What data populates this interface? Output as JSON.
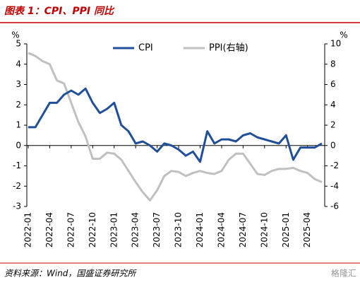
{
  "title": "图表 1：CPI、PPI 同比",
  "source": "资料来源：Wind，国盛证券研究所",
  "watermark": "格隆汇",
  "chart_data": {
    "type": "line",
    "categories": [
      "2022-01",
      null,
      null,
      "2022-04",
      null,
      null,
      "2022-07",
      null,
      null,
      "2022-10",
      null,
      null,
      "2023-01",
      null,
      null,
      "2023-04",
      null,
      null,
      "2023-07",
      null,
      null,
      "2023-10",
      null,
      null,
      "2024-01",
      null,
      null,
      "2024-04",
      null,
      null,
      "2024-07",
      null,
      null,
      "2024-10",
      null,
      null,
      "2025-01",
      null,
      null,
      "2025-04",
      null,
      null
    ],
    "series": [
      {
        "name": "CPI",
        "color": "#1f4e9a",
        "axis": "y",
        "values": [
          0.9,
          0.9,
          1.5,
          2.1,
          2.1,
          2.5,
          2.7,
          2.5,
          2.8,
          2.1,
          1.6,
          1.8,
          2.1,
          1.0,
          0.7,
          0.1,
          0.2,
          0.0,
          -0.3,
          0.1,
          0.0,
          -0.2,
          -0.5,
          -0.3,
          -0.8,
          0.7,
          0.1,
          0.3,
          0.3,
          0.2,
          0.5,
          0.6,
          0.4,
          0.3,
          0.2,
          0.1,
          0.5,
          -0.7,
          -0.1,
          -0.1,
          -0.1,
          0.1
        ]
      },
      {
        "name": "PPI(右轴)",
        "color": "#c0c0c0",
        "axis": "y2",
        "values": [
          9.1,
          8.8,
          8.3,
          8.0,
          6.4,
          6.1,
          4.2,
          2.3,
          0.9,
          -1.3,
          -1.3,
          -0.7,
          -0.8,
          -1.4,
          -2.5,
          -3.6,
          -4.6,
          -5.4,
          -4.4,
          -3.0,
          -2.5,
          -2.6,
          -3.0,
          -2.7,
          -2.5,
          -2.7,
          -2.8,
          -2.5,
          -1.4,
          -0.8,
          -0.8,
          -1.8,
          -2.8,
          -2.9,
          -2.5,
          -2.3,
          -2.3,
          -2.2,
          -2.5,
          -2.7,
          -3.3,
          -3.6
        ]
      }
    ],
    "ylabel": "%",
    "y2label": "%",
    "ylim": [
      -3,
      5
    ],
    "yticks": [
      -3,
      -2,
      -1,
      0,
      1,
      2,
      3,
      4,
      5
    ],
    "y2lim": [
      -6,
      10
    ],
    "y2ticks": [
      -6,
      -4,
      -2,
      0,
      2,
      4,
      6,
      8,
      10
    ],
    "legend": "top"
  }
}
